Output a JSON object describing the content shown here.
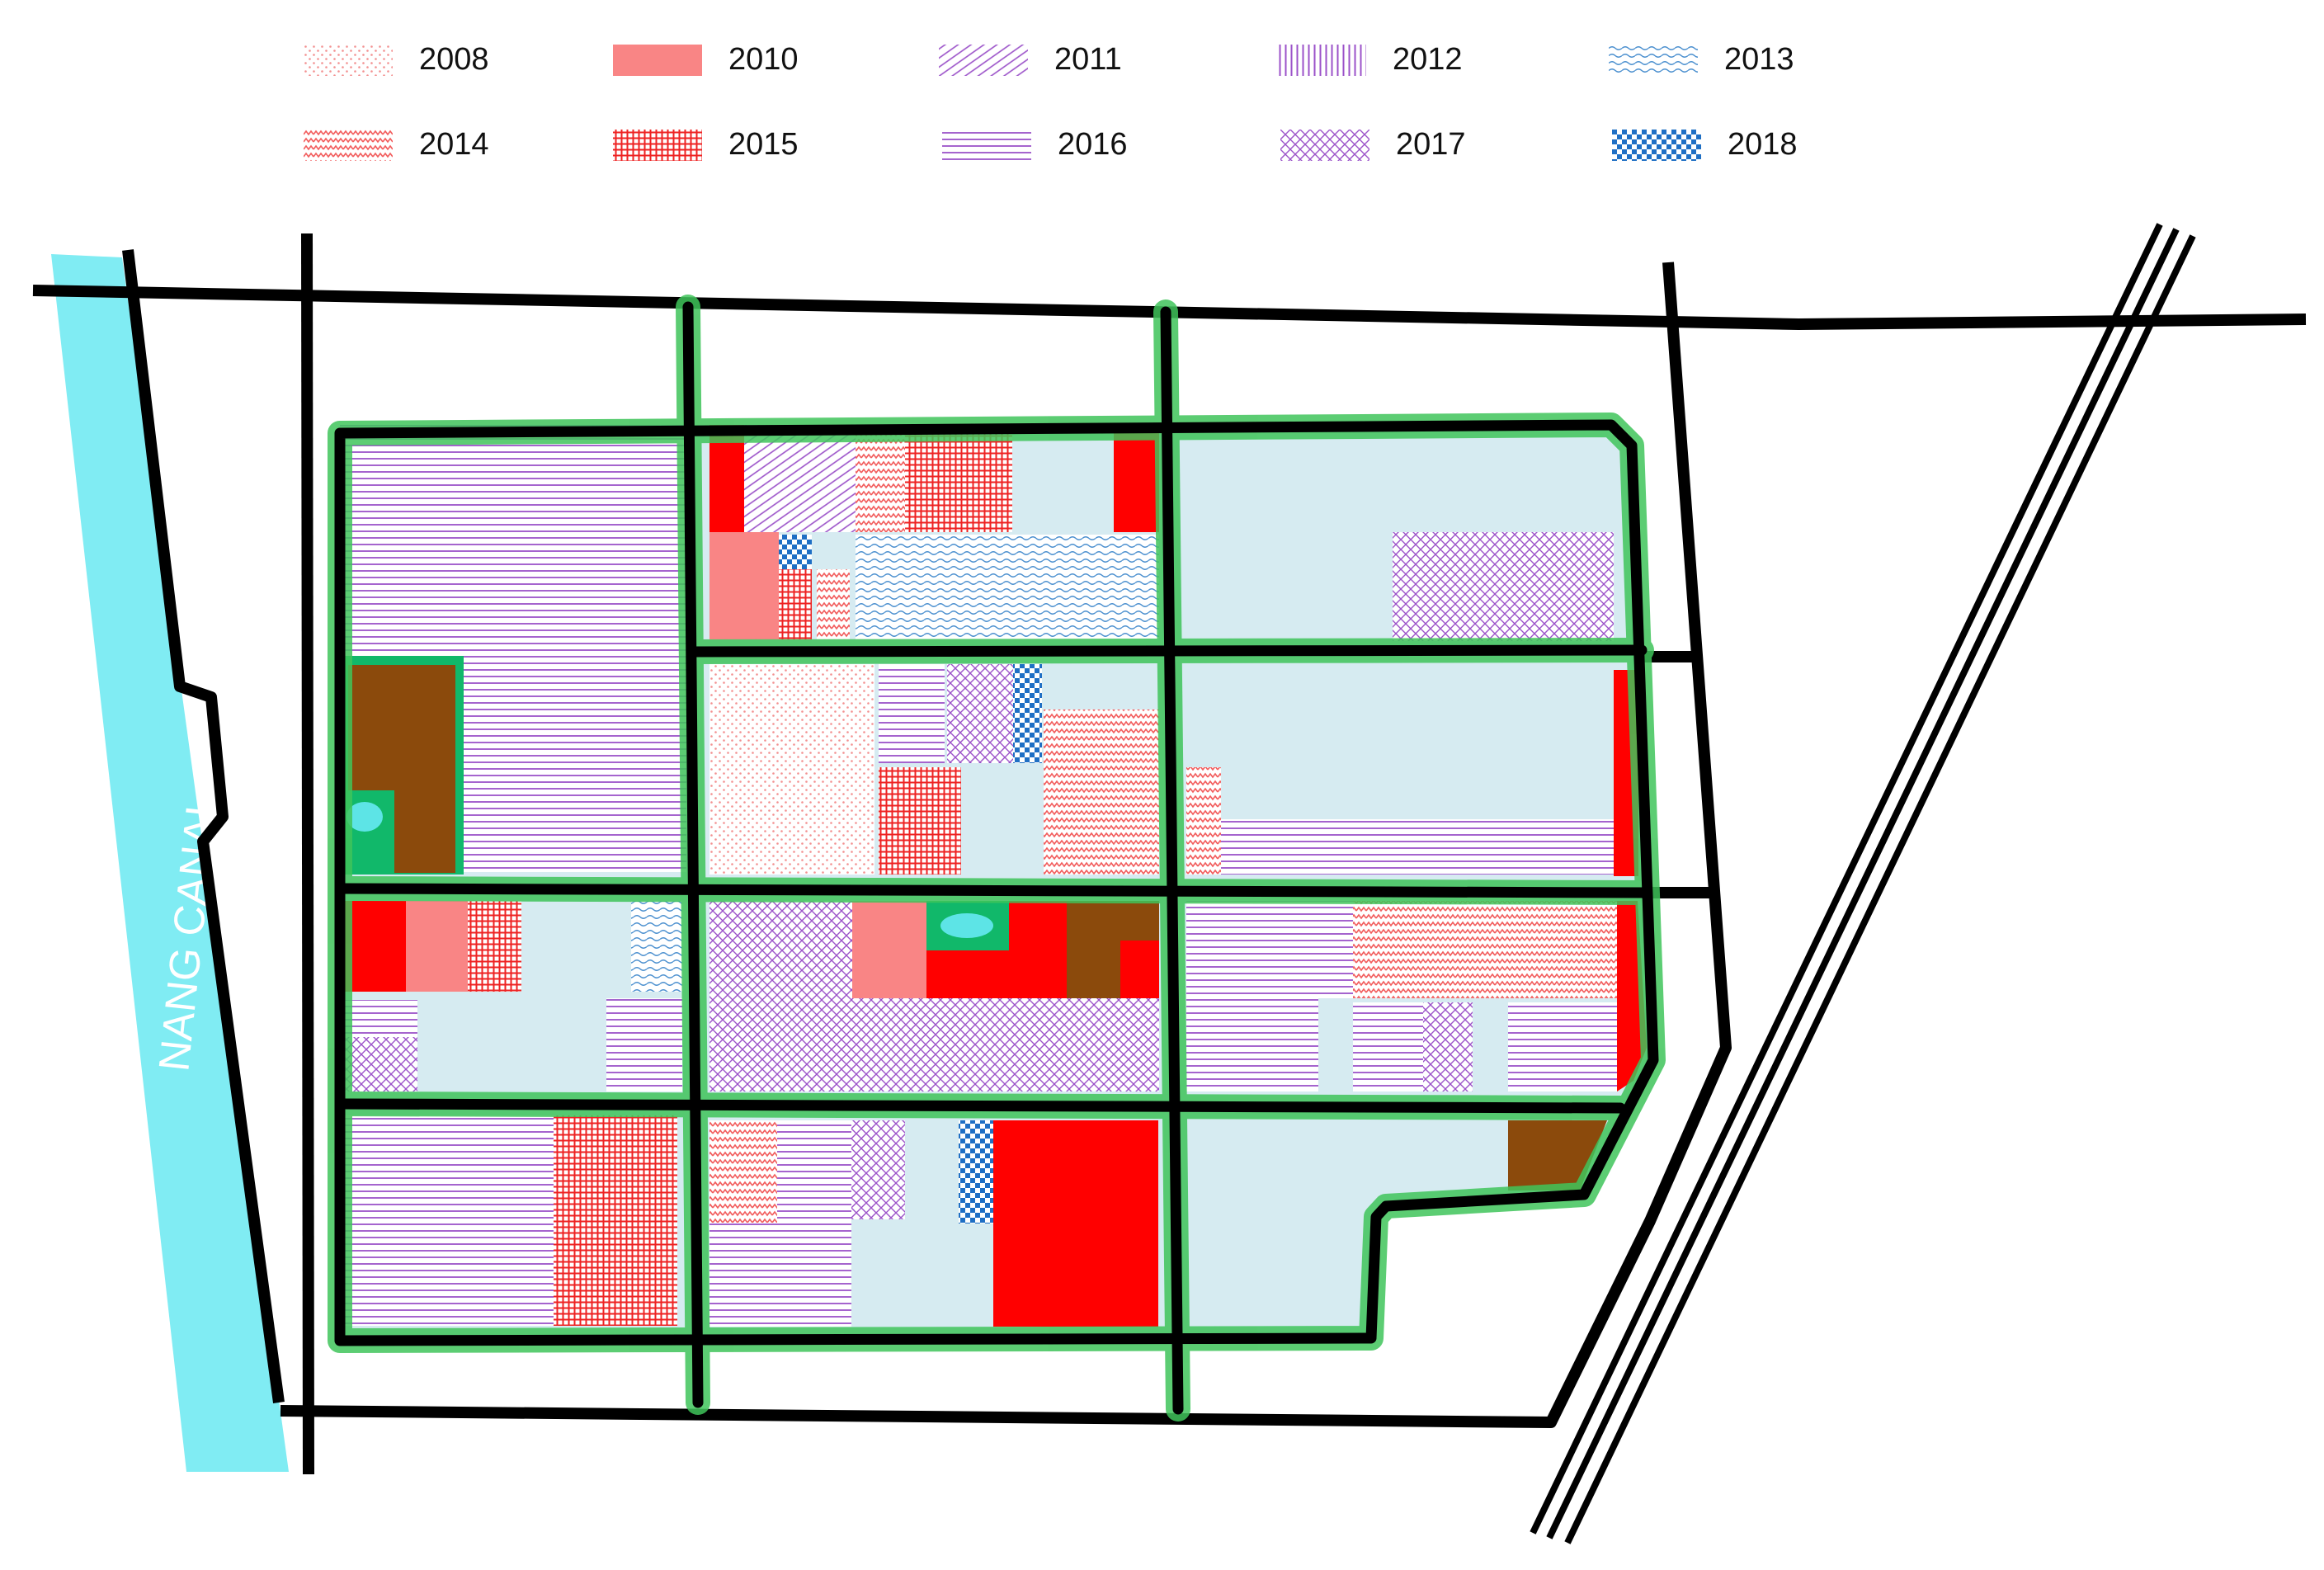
{
  "legend": {
    "items": [
      {
        "label": "2008",
        "pattern": "dots",
        "color": "#f39090"
      },
      {
        "label": "2010",
        "pattern": "solid",
        "color": "#f98585"
      },
      {
        "label": "2011",
        "pattern": "diagonal",
        "color": "#9b52c9"
      },
      {
        "label": "2012",
        "pattern": "vertical",
        "color": "#9b52c9"
      },
      {
        "label": "2013",
        "pattern": "wave",
        "color": "#4a8fcf"
      },
      {
        "label": "2014",
        "pattern": "zigzag",
        "color": "#f25c5c"
      },
      {
        "label": "2015",
        "pattern": "grid",
        "color": "#ee2222"
      },
      {
        "label": "2016",
        "pattern": "horizontal",
        "color": "#9b52c9"
      },
      {
        "label": "2017",
        "pattern": "crosshatch",
        "color": "#9b52c9"
      },
      {
        "label": "2018",
        "pattern": "checker",
        "color": "#1f6fc4"
      }
    ]
  },
  "map": {
    "canal_label": "NANG CANAL",
    "colors": {
      "canal": "#80ecf3",
      "road": "#000000",
      "road_glow": "#3fc45a",
      "vacant": "#d6ebf1",
      "solid_red": "#ff0000",
      "brown": "#8b4a0c",
      "green_space": "#11b86a",
      "pond": "#5de4e6"
    }
  }
}
